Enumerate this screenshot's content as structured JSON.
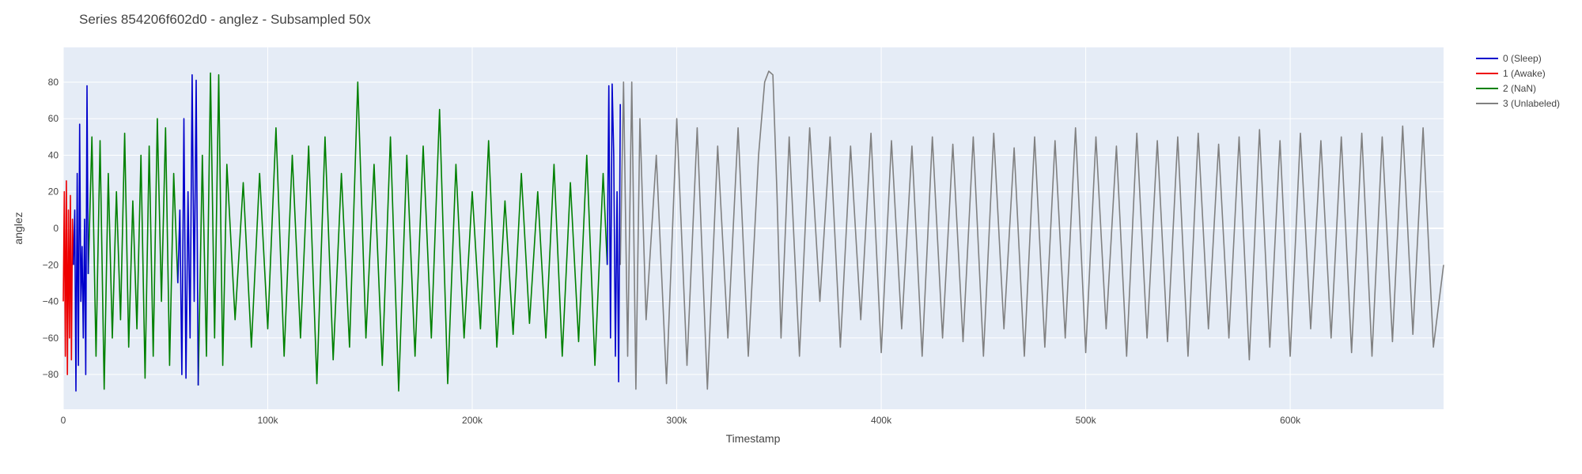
{
  "chart_data": {
    "type": "line",
    "title": "Series 854206f602d0 - anglez - Subsampled 50x",
    "xlabel": "Timestamp",
    "ylabel": "anglez",
    "xlim": [
      0,
      675000
    ],
    "ylim": [
      -99,
      99
    ],
    "x_ticks": [
      {
        "value": 0,
        "label": "0"
      },
      {
        "value": 100000,
        "label": "100k"
      },
      {
        "value": 200000,
        "label": "200k"
      },
      {
        "value": 300000,
        "label": "300k"
      },
      {
        "value": 400000,
        "label": "400k"
      },
      {
        "value": 500000,
        "label": "500k"
      },
      {
        "value": 600000,
        "label": "600k"
      }
    ],
    "y_ticks": [
      {
        "value": -80,
        "label": "−80"
      },
      {
        "value": -60,
        "label": "−60"
      },
      {
        "value": -40,
        "label": "−40"
      },
      {
        "value": -20,
        "label": "−20"
      },
      {
        "value": 0,
        "label": "0"
      },
      {
        "value": 20,
        "label": "20"
      },
      {
        "value": 40,
        "label": "40"
      },
      {
        "value": 60,
        "label": "60"
      },
      {
        "value": 80,
        "label": "80"
      }
    ],
    "grid": true,
    "legend_position": "top-right",
    "series": [
      {
        "name": "0 (Sleep)",
        "color": "#0000cc",
        "segments": [
          {
            "x": [
              5000,
              5600,
              6200,
              6800,
              7400,
              8000,
              8600,
              9200,
              9800,
              10400,
              11000,
              11600,
              12200
            ],
            "y": [
              -20,
              10,
              -89,
              30,
              -75,
              57,
              -40,
              -10,
              -60,
              5,
              -80,
              78,
              -25
            ]
          },
          {
            "x": [
              56000,
              57000,
              58000,
              59000,
              60000,
              61000,
              62000,
              63000,
              64000,
              65000,
              66000
            ],
            "y": [
              -30,
              10,
              -80,
              60,
              -82,
              20,
              -60,
              84,
              -40,
              81,
              -86
            ]
          },
          {
            "x": [
              266000,
              266800,
              267600,
              268400,
              269200,
              270000,
              270800,
              271600,
              272400
            ],
            "y": [
              -20,
              78,
              -60,
              79,
              40,
              -70,
              20,
              -84,
              68
            ]
          }
        ]
      },
      {
        "name": "1 (Awake)",
        "color": "#ee0000",
        "segments": [
          {
            "x": [
              0,
              500,
              1000,
              1500,
              2000,
              2500,
              3000,
              3500,
              4000,
              4500,
              5000
            ],
            "y": [
              -40,
              20,
              -70,
              26,
              -80,
              10,
              -60,
              18,
              -72,
              5,
              -20
            ]
          }
        ]
      },
      {
        "name": "2 (NaN)",
        "color": "#008000",
        "segments": [
          {
            "x": [
              12200,
              14000,
              16000,
              18000,
              20000,
              22000,
              24000,
              26000,
              28000,
              30000,
              32000,
              34000,
              36000,
              38000,
              40000,
              42000,
              44000,
              46000,
              48000,
              50000,
              52000,
              54000,
              56000
            ],
            "y": [
              -25,
              50,
              -70,
              48,
              -88,
              30,
              -60,
              20,
              -50,
              52,
              -65,
              15,
              -55,
              40,
              -82,
              45,
              -70,
              60,
              -40,
              55,
              -75,
              30,
              -30
            ]
          },
          {
            "x": [
              66000,
              68000,
              70000,
              72000,
              74000,
              76000,
              78000,
              80000,
              84000,
              88000,
              92000,
              96000,
              100000,
              104000,
              108000,
              112000,
              116000,
              120000,
              124000,
              128000,
              132000,
              136000,
              140000,
              144000,
              148000,
              152000,
              156000,
              160000,
              164000,
              168000,
              172000,
              176000,
              180000,
              184000,
              188000,
              192000,
              196000,
              200000,
              204000,
              208000,
              212000,
              216000,
              220000,
              224000,
              228000,
              232000,
              236000,
              240000,
              244000,
              248000,
              252000,
              256000,
              260000,
              264000,
              266000
            ],
            "y": [
              -86,
              40,
              -70,
              85,
              -60,
              84,
              -75,
              35,
              -50,
              25,
              -65,
              30,
              -55,
              55,
              -70,
              40,
              -60,
              45,
              -85,
              50,
              -72,
              30,
              -65,
              80,
              -60,
              35,
              -75,
              50,
              -89,
              40,
              -70,
              45,
              -60,
              65,
              -85,
              35,
              -60,
              20,
              -55,
              48,
              -65,
              15,
              -58,
              30,
              -52,
              20,
              -60,
              35,
              -70,
              25,
              -62,
              40,
              -75,
              30,
              -20
            ]
          }
        ]
      },
      {
        "name": "3 (Unlabeled)",
        "color": "#808080",
        "segments": [
          {
            "x": [
              272400,
              274000,
              276000,
              278000,
              280000,
              282000,
              285000,
              290000,
              295000,
              300000,
              305000,
              310000,
              315000,
              320000,
              325000,
              330000,
              335000,
              340000,
              343000,
              345000,
              347000,
              349000,
              351000,
              355000,
              360000,
              365000,
              370000,
              375000,
              380000,
              385000,
              390000,
              395000,
              400000,
              405000,
              410000,
              415000,
              420000,
              425000,
              430000,
              435000,
              440000,
              445000,
              450000,
              455000,
              460000,
              465000,
              470000,
              475000,
              480000,
              485000,
              490000,
              495000,
              500000,
              505000,
              510000,
              515000,
              520000,
              525000,
              530000,
              535000,
              540000,
              545000,
              550000,
              555000,
              560000,
              565000,
              570000,
              575000,
              580000,
              585000,
              590000,
              595000,
              600000,
              605000,
              610000,
              615000,
              620000,
              625000,
              630000,
              635000,
              640000,
              645000,
              650000,
              655000,
              660000,
              665000,
              670000,
              675000
            ],
            "y": [
              -20,
              80,
              -70,
              80,
              -88,
              60,
              -50,
              40,
              -85,
              60,
              -75,
              55,
              -88,
              45,
              -60,
              55,
              -70,
              40,
              80,
              86,
              84,
              20,
              -60,
              50,
              -70,
              55,
              -40,
              50,
              -65,
              45,
              -50,
              52,
              -68,
              48,
              -55,
              45,
              -70,
              50,
              -60,
              46,
              -62,
              50,
              -70,
              52,
              -55,
              44,
              -70,
              50,
              -65,
              48,
              -60,
              55,
              -68,
              50,
              -55,
              45,
              -70,
              52,
              -60,
              48,
              -62,
              50,
              -70,
              52,
              -55,
              46,
              -60,
              50,
              -72,
              54,
              -65,
              48,
              -70,
              52,
              -55,
              48,
              -60,
              50,
              -68,
              52,
              -70,
              50,
              -62,
              56,
              -58,
              55,
              -65,
              -20
            ]
          }
        ]
      }
    ]
  }
}
